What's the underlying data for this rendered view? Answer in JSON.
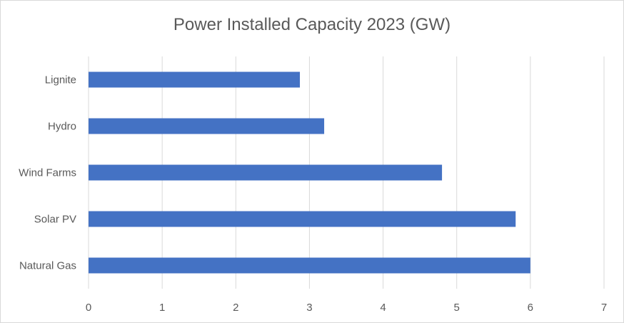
{
  "chart_data": {
    "type": "bar",
    "orientation": "horizontal",
    "title": "Power Installed Capacity 2023 (GW)",
    "categories": [
      "Natural Gas",
      "Solar PV",
      "Wind Farms",
      "Hydro",
      "Lignite"
    ],
    "values": [
      6.0,
      5.8,
      4.8,
      3.2,
      2.87
    ],
    "xlim": [
      0,
      7
    ],
    "xticks": [
      "0",
      "1",
      "2",
      "3",
      "4",
      "5",
      "6",
      "7"
    ],
    "grid": true,
    "legend": false,
    "bar_color": "#4472c4",
    "grid_color": "#d9d9d9",
    "text_color": "#595959"
  }
}
